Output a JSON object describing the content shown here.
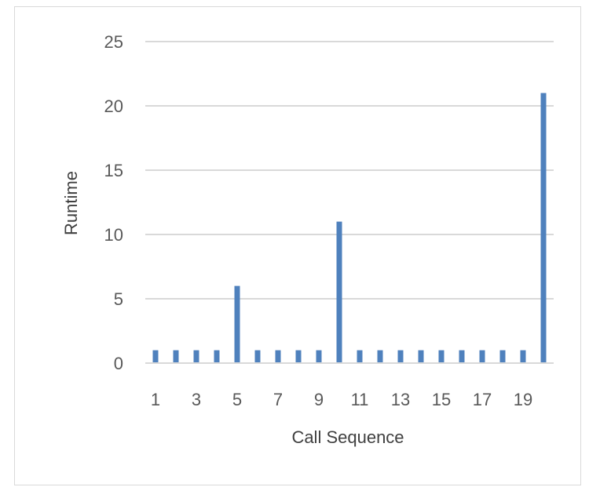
{
  "chart_data": {
    "type": "bar",
    "title": "",
    "xlabel": "Call Sequence",
    "ylabel": "Runtime",
    "ylim": [
      0,
      25
    ],
    "yticks": [
      0,
      5,
      10,
      15,
      20,
      25
    ],
    "grid": true,
    "legend": "none",
    "bar_color": "#4f81bd",
    "categories": [
      "1",
      "2",
      "3",
      "4",
      "5",
      "6",
      "7",
      "8",
      "9",
      "10",
      "11",
      "12",
      "13",
      "14",
      "15",
      "16",
      "17",
      "18",
      "19",
      "20"
    ],
    "xtick_labels": [
      "1",
      "",
      "3",
      "",
      "5",
      "",
      "7",
      "",
      "9",
      "",
      "11",
      "",
      "13",
      "",
      "15",
      "",
      "17",
      "",
      "19",
      ""
    ],
    "values": [
      1,
      1,
      1,
      1,
      6,
      1,
      1,
      1,
      1,
      11,
      1,
      1,
      1,
      1,
      1,
      1,
      1,
      1,
      1,
      21
    ]
  }
}
